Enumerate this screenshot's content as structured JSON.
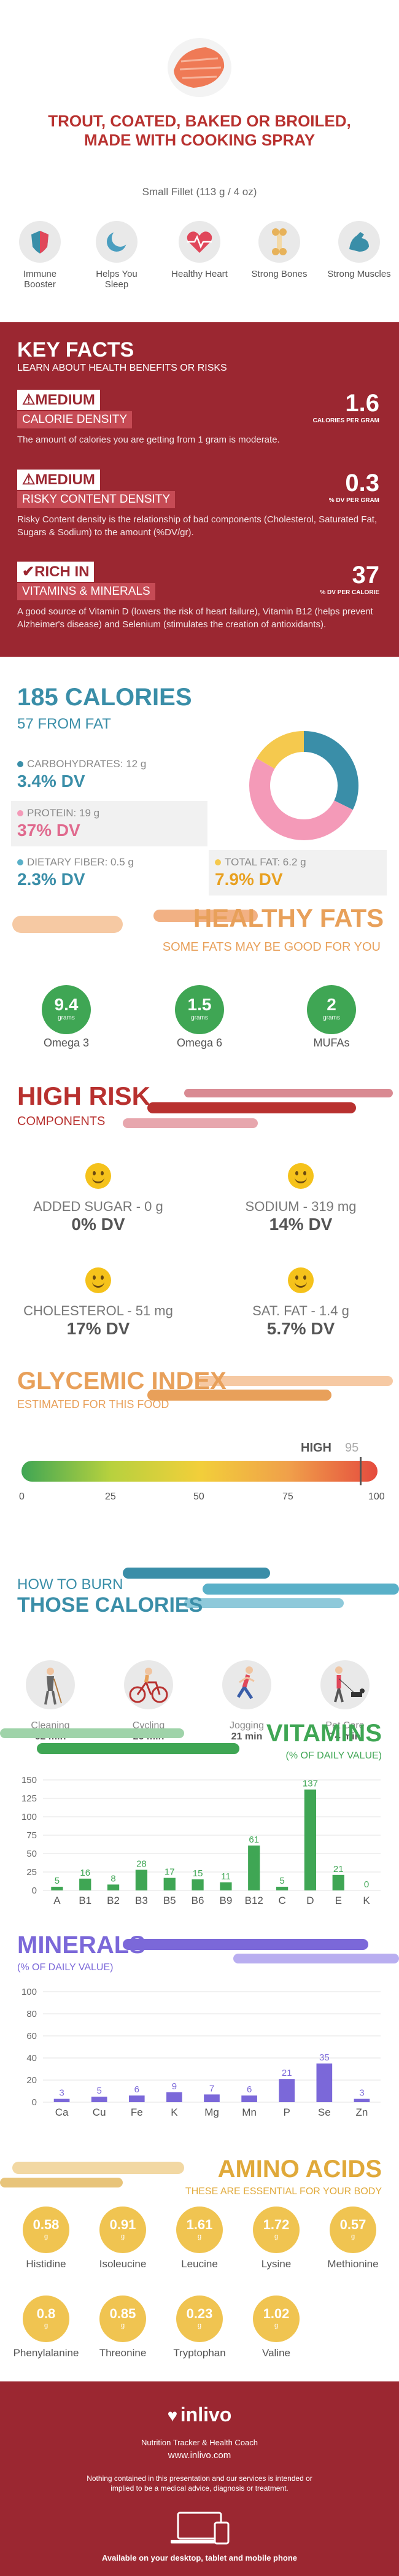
{
  "header": {
    "title": "TROUT, COATED, BAKED OR BROILED, MADE WITH COOKING SPRAY",
    "serving": "Small Fillet (113 g / 4 oz)",
    "benefits": [
      {
        "label": "Immune Booster",
        "icon": "shield-icon",
        "color": "#3a8ea8"
      },
      {
        "label": "Helps You Sleep",
        "icon": "moon-icon",
        "color": "#4a9ec0"
      },
      {
        "label": "Healthy Heart",
        "icon": "heartbeat-icon",
        "color": "#e0475a"
      },
      {
        "label": "Strong Bones",
        "icon": "bone-icon",
        "color": "#e7b25a"
      },
      {
        "label": "Strong Muscles",
        "icon": "muscle-icon",
        "color": "#3a8ea8"
      }
    ]
  },
  "key_facts": {
    "title": "KEY FACTS",
    "subtitle": "LEARN ABOUT HEALTH BENEFITS OR RISKS",
    "items": [
      {
        "level": "MEDIUM",
        "name": "CALORIE DENSITY",
        "value": "1.6",
        "unit": "CALORIES PER GRAM",
        "desc": "The amount of calories you are getting from 1 gram is moderate."
      },
      {
        "level": "MEDIUM",
        "name": "RISKY CONTENT DENSITY",
        "value": "0.3",
        "unit": "% DV PER GRAM",
        "desc": "Risky Content density is the relationship of bad components (Cholesterol, Saturated Fat, Sugars & Sodium) to the amount (%DV/gr)."
      },
      {
        "level": "RICH IN",
        "name": "VITAMINS & MINERALS",
        "value": "37",
        "unit": "% DV PER CALORIE",
        "desc": "A good source of Vitamin D (lowers the risk of heart failure), Vitamin B12 (helps prevent Alzheimer's disease) and Selenium (stimulates the creation of antioxidants)."
      }
    ]
  },
  "calories": {
    "title": "185 CALORIES",
    "subtitle": "57 FROM FAT",
    "macros": [
      {
        "label": "CARBOHYDRATES: 12 g",
        "dv": "3.4% DV",
        "color": "#3a8ea8"
      },
      {
        "label": "PROTEIN: 19 g",
        "dv": "37% DV",
        "color": "#f49ab8"
      },
      {
        "label": "DIETARY FIBER: 0.5 g",
        "dv": "2.3% DV",
        "color": "#5ab0c8"
      },
      {
        "label": "TOTAL FAT: 6.2 g",
        "dv": "7.9% DV",
        "color": "#f5c94e"
      }
    ],
    "donut": [
      {
        "name": "carbohydrates",
        "value": 12,
        "color": "#3a8ea8"
      },
      {
        "name": "protein",
        "value": 19,
        "color": "#f49ab8"
      },
      {
        "name": "fat",
        "value": 6.2,
        "color": "#f5c94e"
      }
    ]
  },
  "healthy_fats": {
    "title": "HEALTHY FATS",
    "subtitle": "SOME FATS MAY BE GOOD FOR YOU",
    "items": [
      {
        "value": "9.4",
        "unit": "grams",
        "label": "Omega 3"
      },
      {
        "value": "1.5",
        "unit": "grams",
        "label": "Omega 6"
      },
      {
        "value": "2",
        "unit": "grams",
        "label": "MUFAs"
      }
    ]
  },
  "high_risk": {
    "title": "HIGH RISK",
    "subtitle": "COMPONENTS",
    "items": [
      {
        "label": "ADDED SUGAR - 0 g",
        "dv": "0% DV"
      },
      {
        "label": "SODIUM - 319 mg",
        "dv": "14% DV"
      },
      {
        "label": "CHOLESTEROL - 51 mg",
        "dv": "17% DV"
      },
      {
        "label": "SAT. FAT - 1.4 g",
        "dv": "5.7% DV"
      }
    ]
  },
  "glycemic": {
    "title": "GLYCEMIC INDEX",
    "subtitle": "ESTIMATED FOR THIS FOOD",
    "level": "HIGH",
    "value": "95",
    "value_num": 95,
    "ticks": [
      "0",
      "25",
      "50",
      "75",
      "100"
    ]
  },
  "burn": {
    "title_line1": "HOW TO BURN",
    "title_line2": "THOSE CALORIES",
    "activities": [
      {
        "label": "Cleaning",
        "minutes": "62 min",
        "icon": "cleaning-icon"
      },
      {
        "label": "Cycling",
        "minutes": "26 min",
        "icon": "cycling-icon"
      },
      {
        "label": "Jogging",
        "minutes": "21 min",
        "icon": "jogging-icon"
      },
      {
        "label": "Pet Care",
        "minutes": "74 min",
        "icon": "pet-care-icon"
      }
    ]
  },
  "vitamins_title": "VITAMINS",
  "vitamins_sub": "(% OF DAILY VALUE)",
  "minerals_title": "MINERALS",
  "minerals_sub": "(% OF DAILY VALUE)",
  "chart_data": [
    {
      "type": "bar",
      "title": "VITAMINS",
      "subtitle": "(% OF DAILY VALUE)",
      "categories": [
        "A",
        "B1",
        "B2",
        "B3",
        "B5",
        "B6",
        "B9",
        "B12",
        "C",
        "D",
        "E",
        "K"
      ],
      "values": [
        5,
        16,
        8,
        28,
        17,
        15,
        11,
        61,
        5,
        137,
        21,
        0
      ],
      "ylim": [
        0,
        150
      ],
      "yticks": [
        0,
        25,
        50,
        75,
        100,
        125,
        150
      ],
      "color": "#3fa654",
      "grid": true
    },
    {
      "type": "bar",
      "title": "MINERALS",
      "subtitle": "(% OF DAILY VALUE)",
      "categories": [
        "Ca",
        "Cu",
        "Fe",
        "K",
        "Mg",
        "Mn",
        "P",
        "Se",
        "Zn"
      ],
      "values": [
        3,
        5,
        6,
        9,
        7,
        6,
        21,
        35,
        3
      ],
      "ylim": [
        0,
        100
      ],
      "yticks": [
        0,
        20,
        40,
        60,
        80,
        100
      ],
      "color": "#7b68d9",
      "grid": true
    }
  ],
  "amino": {
    "title": "AMINO ACIDS",
    "subtitle": "THESE ARE ESSENTIAL FOR YOUR BODY",
    "unit": "g",
    "items": [
      {
        "value": "0.58",
        "label": "Histidine"
      },
      {
        "value": "0.91",
        "label": "Isoleucine"
      },
      {
        "value": "1.61",
        "label": "Leucine"
      },
      {
        "value": "1.72",
        "label": "Lysine"
      },
      {
        "value": "0.57",
        "label": "Methionine"
      },
      {
        "value": "0.8",
        "label": "Phenylalanine"
      },
      {
        "value": "0.85",
        "label": "Threonine"
      },
      {
        "value": "0.23",
        "label": "Tryptophan"
      },
      {
        "value": "1.02",
        "label": "Valine"
      }
    ]
  },
  "footer": {
    "brand": "inlivo",
    "tagline": "Nutrition Tracker & Health Coach",
    "url": "www.inlivo.com",
    "disclaimer": "Nothing contained in this presentation and our services is intended or implied to be a medical advice, diagnosis or treatment.",
    "platforms": "Available on your desktop, tablet and mobile phone"
  }
}
